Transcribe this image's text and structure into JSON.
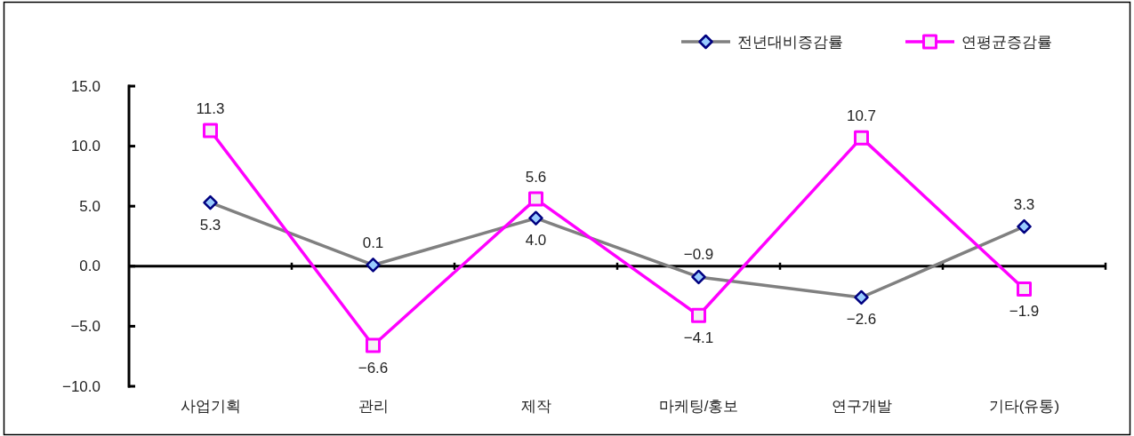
{
  "chart_data": {
    "type": "line",
    "categories": [
      "사업기획",
      "관리",
      "제작",
      "마케팅/홍보",
      "연구개발",
      "기타(유통)"
    ],
    "series": [
      {
        "name": "전년대비증감률",
        "color": "#808080",
        "marker": "diamond",
        "values": [
          5.3,
          0.1,
          4.0,
          -0.9,
          -2.6,
          3.3
        ],
        "value_labels": [
          "5.3",
          "0.1",
          "4.0",
          "−0.9",
          "−2.6",
          "3.3"
        ]
      },
      {
        "name": "연평균증감률",
        "color": "#ff00ff",
        "marker": "square",
        "values": [
          11.3,
          -6.6,
          5.6,
          -4.1,
          10.7,
          -1.9
        ],
        "value_labels": [
          "11.3",
          "−6.6",
          "5.6",
          "−4.1",
          "10.7",
          "−1.9"
        ]
      }
    ],
    "ylim": [
      -10,
      15
    ],
    "yticks": [
      {
        "value": -10,
        "label": "−10.0"
      },
      {
        "value": -5,
        "label": "−5.0"
      },
      {
        "value": 0,
        "label": "0.0"
      },
      {
        "value": 5,
        "label": "5.0"
      },
      {
        "value": 10,
        "label": "10.0"
      },
      {
        "value": 15,
        "label": "15.0"
      }
    ],
    "line_style": "solid",
    "legend": "top right"
  }
}
